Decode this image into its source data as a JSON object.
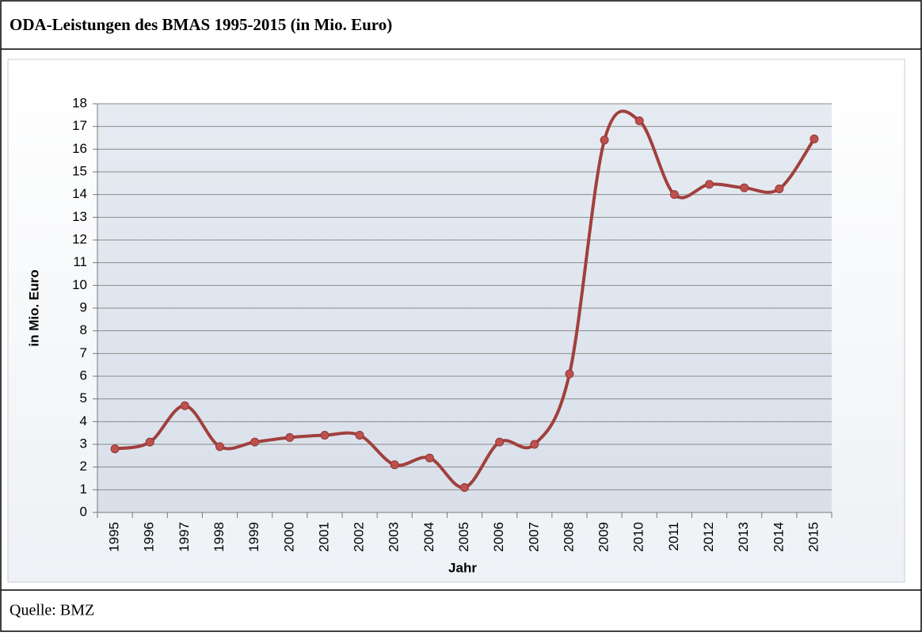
{
  "chart_data": {
    "type": "line",
    "title": "ODA-Leistungen des BMAS 1995-2015 (in Mio. Euro)",
    "source": "Quelle: BMZ",
    "x_label": "Jahr",
    "y_label": "in Mio. Euro",
    "categories": [
      "1995",
      "1996",
      "1997",
      "1998",
      "1999",
      "2000",
      "2001",
      "2002",
      "2003",
      "2004",
      "2005",
      "2006",
      "2007",
      "2008",
      "2009",
      "2010",
      "2011",
      "2012",
      "2013",
      "2014",
      "2015"
    ],
    "series": [
      {
        "color": "#a0403d",
        "values": [
          2.8,
          3.1,
          4.7,
          2.9,
          3.1,
          3.3,
          3.4,
          3.4,
          2.1,
          2.4,
          1.1,
          3.1,
          3.0,
          6.1,
          16.4,
          17.25,
          14.0,
          14.45,
          14.3,
          14.25,
          16.45
        ]
      }
    ],
    "ylim": [
      0,
      18
    ],
    "yticks": [
      0,
      1,
      2,
      3,
      4,
      5,
      6,
      7,
      8,
      9,
      10,
      11,
      12,
      13,
      14,
      15,
      16,
      17,
      18
    ],
    "grid": true
  }
}
